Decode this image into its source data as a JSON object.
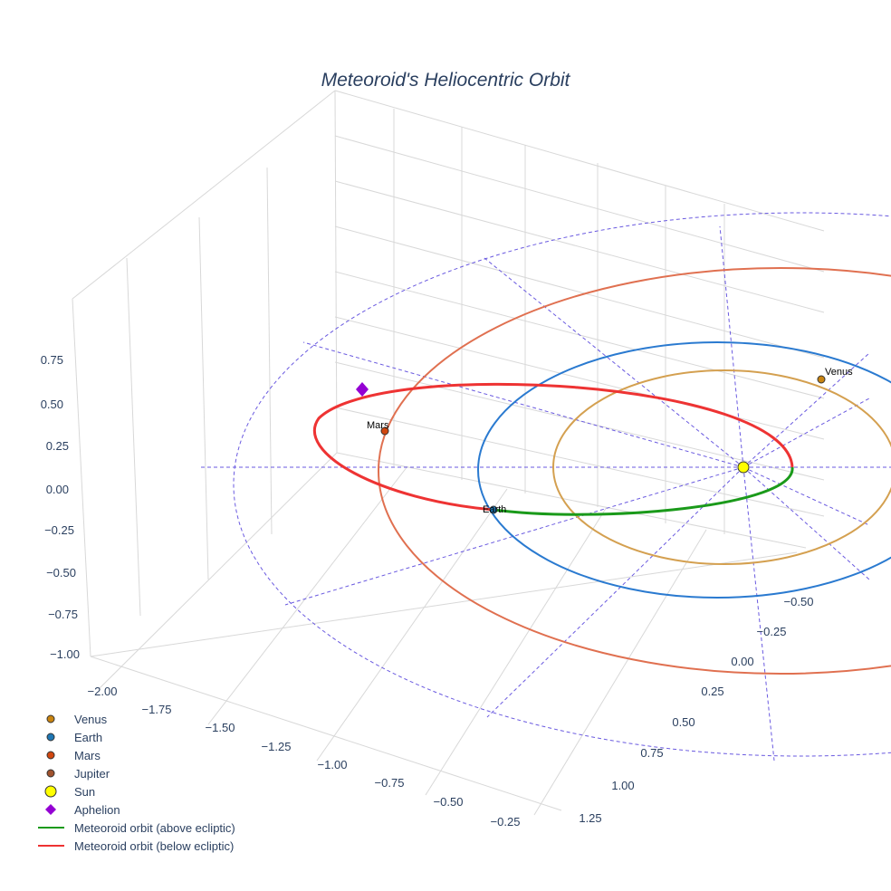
{
  "chart_data": {
    "type": "scatter3d",
    "title": "Meteoroid's Heliocentric Orbit",
    "axes": {
      "x": {
        "ticks": [
          "−2.00",
          "−1.75",
          "−1.50",
          "−1.25",
          "−1.00",
          "−0.75",
          "−0.50",
          "−0.25"
        ]
      },
      "y": {
        "ticks": [
          "−0.50",
          "−0.25",
          "0.00",
          "0.25",
          "0.50",
          "0.75",
          "1.00",
          "1.25"
        ]
      },
      "z": {
        "ticks": [
          "0.75",
          "0.50",
          "0.25",
          "0.00",
          "−0.25",
          "−0.50",
          "−0.75",
          "−1.00"
        ]
      }
    },
    "points": [
      {
        "name": "Venus",
        "label": "Venus",
        "color": "#c98410"
      },
      {
        "name": "Earth",
        "label": "Earth",
        "color": "#1f77b4"
      },
      {
        "name": "Mars",
        "label": "Mars",
        "color": "#d1470f"
      },
      {
        "name": "Jupiter",
        "label": "",
        "color": "#a0522d"
      },
      {
        "name": "Sun",
        "label": "",
        "color": "#ffff00"
      },
      {
        "name": "Aphelion",
        "label": "",
        "color": "#9400d3"
      }
    ],
    "orbits": {
      "venus": "#d4a050",
      "earth": "#2a7ad0",
      "mars": "#e07050",
      "jupiter": "#6a5ae0"
    },
    "series": [
      {
        "name": "Meteoroid orbit (above ecliptic)",
        "color": "#1a9a1a"
      },
      {
        "name": "Meteoroid orbit (below ecliptic)",
        "color": "#ee3333"
      }
    ],
    "legend": {
      "placement": "bottom-left",
      "entries": [
        "Venus",
        "Earth",
        "Mars",
        "Jupiter",
        "Sun",
        "Aphelion",
        "Meteoroid orbit (above ecliptic)",
        "Meteoroid orbit (below ecliptic)"
      ]
    }
  }
}
